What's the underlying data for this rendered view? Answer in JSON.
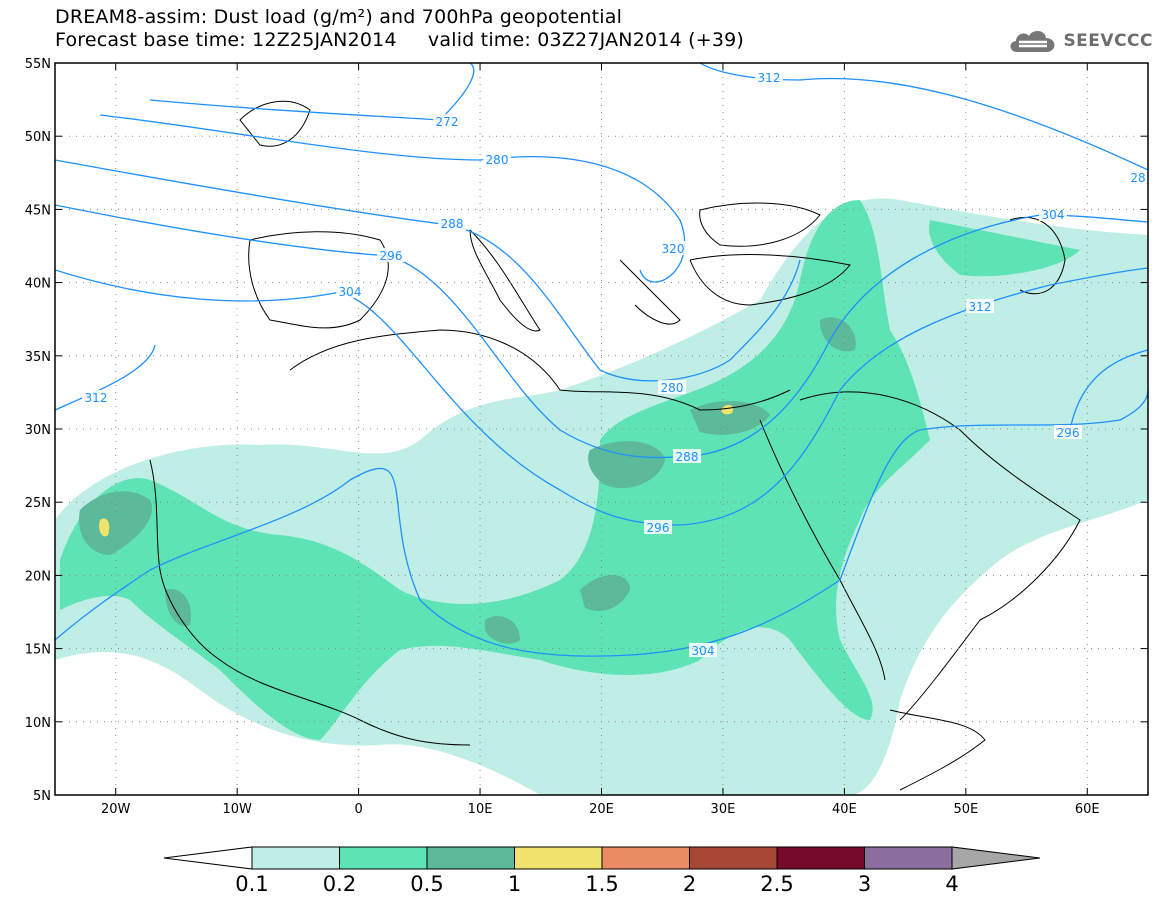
{
  "header": {
    "title_line1": "DREAM8-assim: Dust load (g/m²) and 700hPa geopotential",
    "title_line2": "Forecast base time: 12Z25JAN2014     valid time: 03Z27JAN2014 (+39)",
    "logo_text": "SEEVCCC"
  },
  "map": {
    "lat_labels": [
      "55N",
      "50N",
      "45N",
      "40N",
      "35N",
      "30N",
      "25N",
      "20N",
      "15N",
      "10N",
      "5N"
    ],
    "lon_labels": [
      "20W",
      "10W",
      "0",
      "10E",
      "20E",
      "30E",
      "40E",
      "50E",
      "60E"
    ],
    "contour_labels": [
      "272",
      "280",
      "288",
      "296",
      "304",
      "312",
      "320",
      "280",
      "288",
      "296",
      "304",
      "312",
      "296",
      "304",
      "312",
      "28"
    ]
  },
  "colorbar": {
    "ticks": [
      "0.1",
      "0.2",
      "0.5",
      "1",
      "1.5",
      "2",
      "2.5",
      "3",
      "4"
    ],
    "colors": [
      "#bfeee6",
      "#5ee3b4",
      "#5cb999",
      "#f2e36c",
      "#ea8c63",
      "#a74735",
      "#760a2a",
      "#8a6e9e"
    ],
    "over_color": "#a6a6a6",
    "under_color": "#ffffff"
  }
}
